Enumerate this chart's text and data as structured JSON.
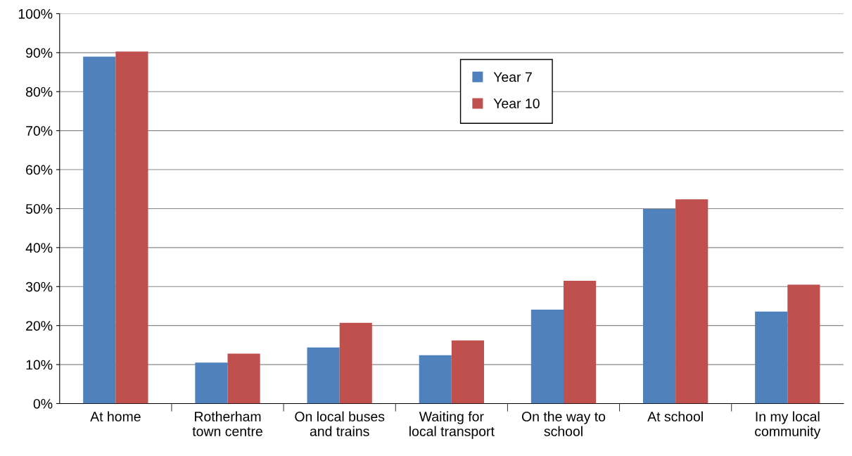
{
  "chart_data": {
    "type": "bar",
    "categories": [
      "At home",
      "Rotherham\ntown centre",
      "On local buses\nand trains",
      "Waiting for\nlocal transport",
      "On the way to\nschool",
      "At school",
      "In my local\ncommunity"
    ],
    "series": [
      {
        "name": "Year 7",
        "color": "#4f81bd",
        "values": [
          89.0,
          10.5,
          14.4,
          12.4,
          24.1,
          49.9,
          23.6
        ]
      },
      {
        "name": "Year 10",
        "color": "#c0504d",
        "values": [
          90.3,
          12.8,
          20.7,
          16.2,
          31.5,
          52.4,
          30.5
        ]
      }
    ],
    "ylim": [
      0,
      100
    ],
    "yticks": [
      {
        "value": 0,
        "label": "0%"
      },
      {
        "value": 10,
        "label": "10%"
      },
      {
        "value": 20,
        "label": "20%"
      },
      {
        "value": 30,
        "label": "30%"
      },
      {
        "value": 40,
        "label": "40%"
      },
      {
        "value": 50,
        "label": "50%"
      },
      {
        "value": 60,
        "label": "60%"
      },
      {
        "value": 70,
        "label": "70%"
      },
      {
        "value": 80,
        "label": "80%"
      },
      {
        "value": 90,
        "label": "90%"
      },
      {
        "value": 100,
        "label": "100%"
      }
    ],
    "grid": "y",
    "legend": "top"
  }
}
